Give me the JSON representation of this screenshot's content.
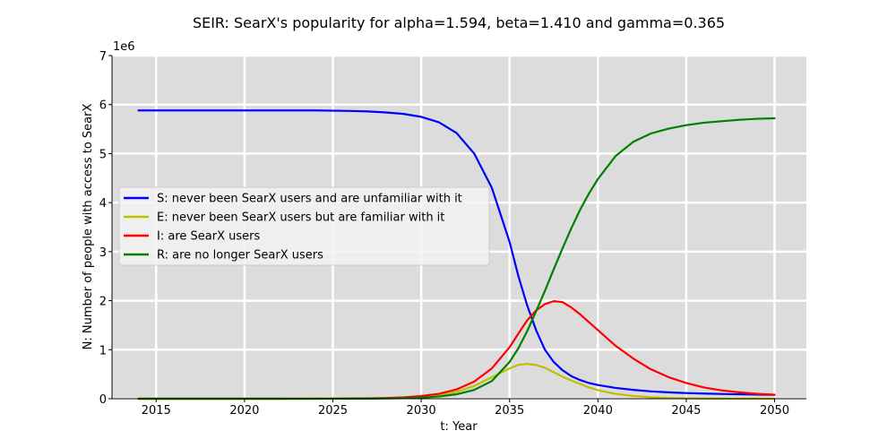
{
  "chart_data": {
    "type": "line",
    "title": "SEIR: SearX's popularity for alpha=1.594, beta=1.410 and gamma=0.365",
    "xlabel": "t: Year",
    "ylabel": "N: Number of people with access to SearX",
    "y_offset_label": "1e6",
    "xlim": [
      2012.5,
      2051.8
    ],
    "ylim": [
      0,
      7000000
    ],
    "x_ticks": [
      2015,
      2020,
      2025,
      2030,
      2035,
      2040,
      2045,
      2050
    ],
    "y_ticks": [
      0,
      1,
      2,
      3,
      4,
      5,
      6,
      7
    ],
    "y_tick_scale": 1000000,
    "grid": true,
    "legend_position": "center-left",
    "background": "#dcdcdc",
    "x": [
      2014,
      2016,
      2018,
      2020,
      2022,
      2024,
      2026,
      2027,
      2028,
      2029,
      2030,
      2031,
      2032,
      2033,
      2034,
      2035,
      2035.5,
      2036,
      2036.5,
      2037,
      2037.5,
      2038,
      2038.5,
      2039,
      2039.5,
      2040,
      2041,
      2042,
      2043,
      2044,
      2045,
      2046,
      2047,
      2048,
      2049,
      2050
    ],
    "series": [
      {
        "name": "S: never been SearX users and are unfamiliar with it",
        "color": "#0000ff",
        "values": [
          5880000,
          5880000,
          5880000,
          5880000,
          5880000,
          5880000,
          5870000,
          5860000,
          5840000,
          5810000,
          5750000,
          5640000,
          5420000,
          5000000,
          4300000,
          3200000,
          2500000,
          1900000,
          1400000,
          1000000,
          750000,
          580000,
          460000,
          380000,
          320000,
          280000,
          220000,
          180000,
          150000,
          130000,
          115000,
          105000,
          97000,
          90000,
          85000,
          80000
        ]
      },
      {
        "name": "E: never been SearX users but are familiar with it",
        "color": "#bfbf00",
        "values": [
          0,
          0,
          0,
          0,
          0,
          1000,
          3000,
          5000,
          9000,
          17000,
          35000,
          70000,
          140000,
          260000,
          440000,
          620000,
          690000,
          710000,
          690000,
          630000,
          540000,
          450000,
          370000,
          300000,
          230000,
          175000,
          100000,
          55000,
          30000,
          15000,
          8000,
          4000,
          2000,
          1000,
          500,
          0
        ]
      },
      {
        "name": "I: are SearX users",
        "color": "#ff0000",
        "values": [
          0,
          0,
          0,
          0,
          0,
          1000,
          4000,
          8000,
          15000,
          28000,
          55000,
          100000,
          190000,
          350000,
          620000,
          1050000,
          1330000,
          1600000,
          1800000,
          1930000,
          1990000,
          1970000,
          1860000,
          1720000,
          1560000,
          1400000,
          1080000,
          820000,
          600000,
          440000,
          320000,
          230000,
          170000,
          130000,
          100000,
          80000
        ]
      },
      {
        "name": "R: are no longer SearX users",
        "color": "#008000",
        "values": [
          0,
          0,
          0,
          0,
          0,
          0,
          1000,
          3000,
          6000,
          11000,
          22000,
          45000,
          90000,
          180000,
          360000,
          750000,
          1030000,
          1380000,
          1780000,
          2200000,
          2640000,
          3070000,
          3480000,
          3860000,
          4190000,
          4480000,
          4950000,
          5240000,
          5410000,
          5510000,
          5580000,
          5630000,
          5660000,
          5690000,
          5710000,
          5720000
        ]
      }
    ]
  }
}
